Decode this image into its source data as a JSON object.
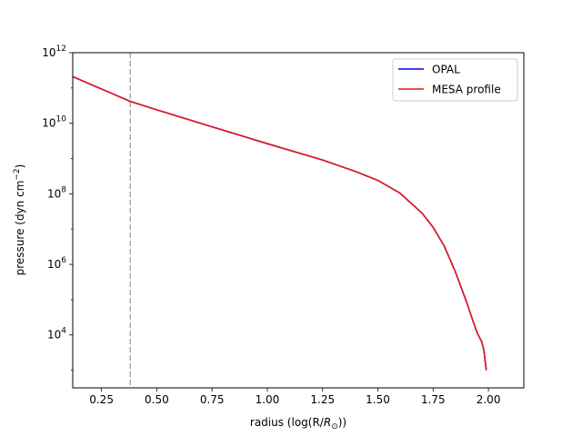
{
  "chart_data": {
    "type": "line",
    "xlabel_main": "radius (log(R/",
    "xlabel_sym": "R",
    "xlabel_sub": "⊙",
    "xlabel_end": "))",
    "ylabel_main": "pressure (dyn cm",
    "ylabel_sup": "−2",
    "ylabel_end": ")",
    "xlim": [
      0.12,
      2.16
    ],
    "ylim_log10": [
      2.5,
      12.0
    ],
    "y_scale": "log",
    "grid": false,
    "legend_position": "top-right",
    "x_ticks": [
      {
        "value": 0.25,
        "label": "0.25"
      },
      {
        "value": 0.5,
        "label": "0.50"
      },
      {
        "value": 0.75,
        "label": "0.75"
      },
      {
        "value": 1.0,
        "label": "1.00"
      },
      {
        "value": 1.25,
        "label": "1.25"
      },
      {
        "value": 1.5,
        "label": "1.50"
      },
      {
        "value": 1.75,
        "label": "1.75"
      },
      {
        "value": 2.0,
        "label": "2.00"
      }
    ],
    "y_ticks": [
      {
        "exp": 4,
        "base": "10",
        "sup": "4"
      },
      {
        "exp": 6,
        "base": "10",
        "sup": "6"
      },
      {
        "exp": 8,
        "base": "10",
        "sup": "8"
      },
      {
        "exp": 10,
        "base": "10",
        "sup": "10"
      },
      {
        "exp": 12,
        "base": "10",
        "sup": "12"
      }
    ],
    "vline": {
      "x": 0.38,
      "color": "#aaaaaa",
      "style": "dashed"
    },
    "series": [
      {
        "name": "OPAL",
        "color": "#0000ff",
        "x": [
          0.12,
          0.25,
          0.38,
          0.5,
          0.75,
          1.0,
          1.25,
          1.4,
          1.5,
          1.6,
          1.7,
          1.75,
          1.8,
          1.85,
          1.9,
          1.93,
          1.95,
          1.97,
          1.98,
          1.99
        ],
        "log10_y": [
          11.32,
          10.97,
          10.62,
          10.38,
          9.9,
          9.42,
          8.96,
          8.63,
          8.38,
          8.02,
          7.45,
          7.05,
          6.52,
          5.8,
          4.95,
          4.4,
          4.05,
          3.8,
          3.55,
          3.0
        ]
      },
      {
        "name": "MESA profile",
        "color": "#e41a1c",
        "x": [
          0.12,
          0.25,
          0.38,
          0.5,
          0.75,
          1.0,
          1.25,
          1.4,
          1.5,
          1.6,
          1.7,
          1.75,
          1.8,
          1.85,
          1.9,
          1.93,
          1.95,
          1.97,
          1.98,
          1.99
        ],
        "log10_y": [
          11.32,
          10.97,
          10.62,
          10.38,
          9.9,
          9.42,
          8.96,
          8.63,
          8.38,
          8.02,
          7.45,
          7.05,
          6.52,
          5.8,
          4.95,
          4.4,
          4.05,
          3.8,
          3.55,
          3.0
        ]
      }
    ]
  }
}
